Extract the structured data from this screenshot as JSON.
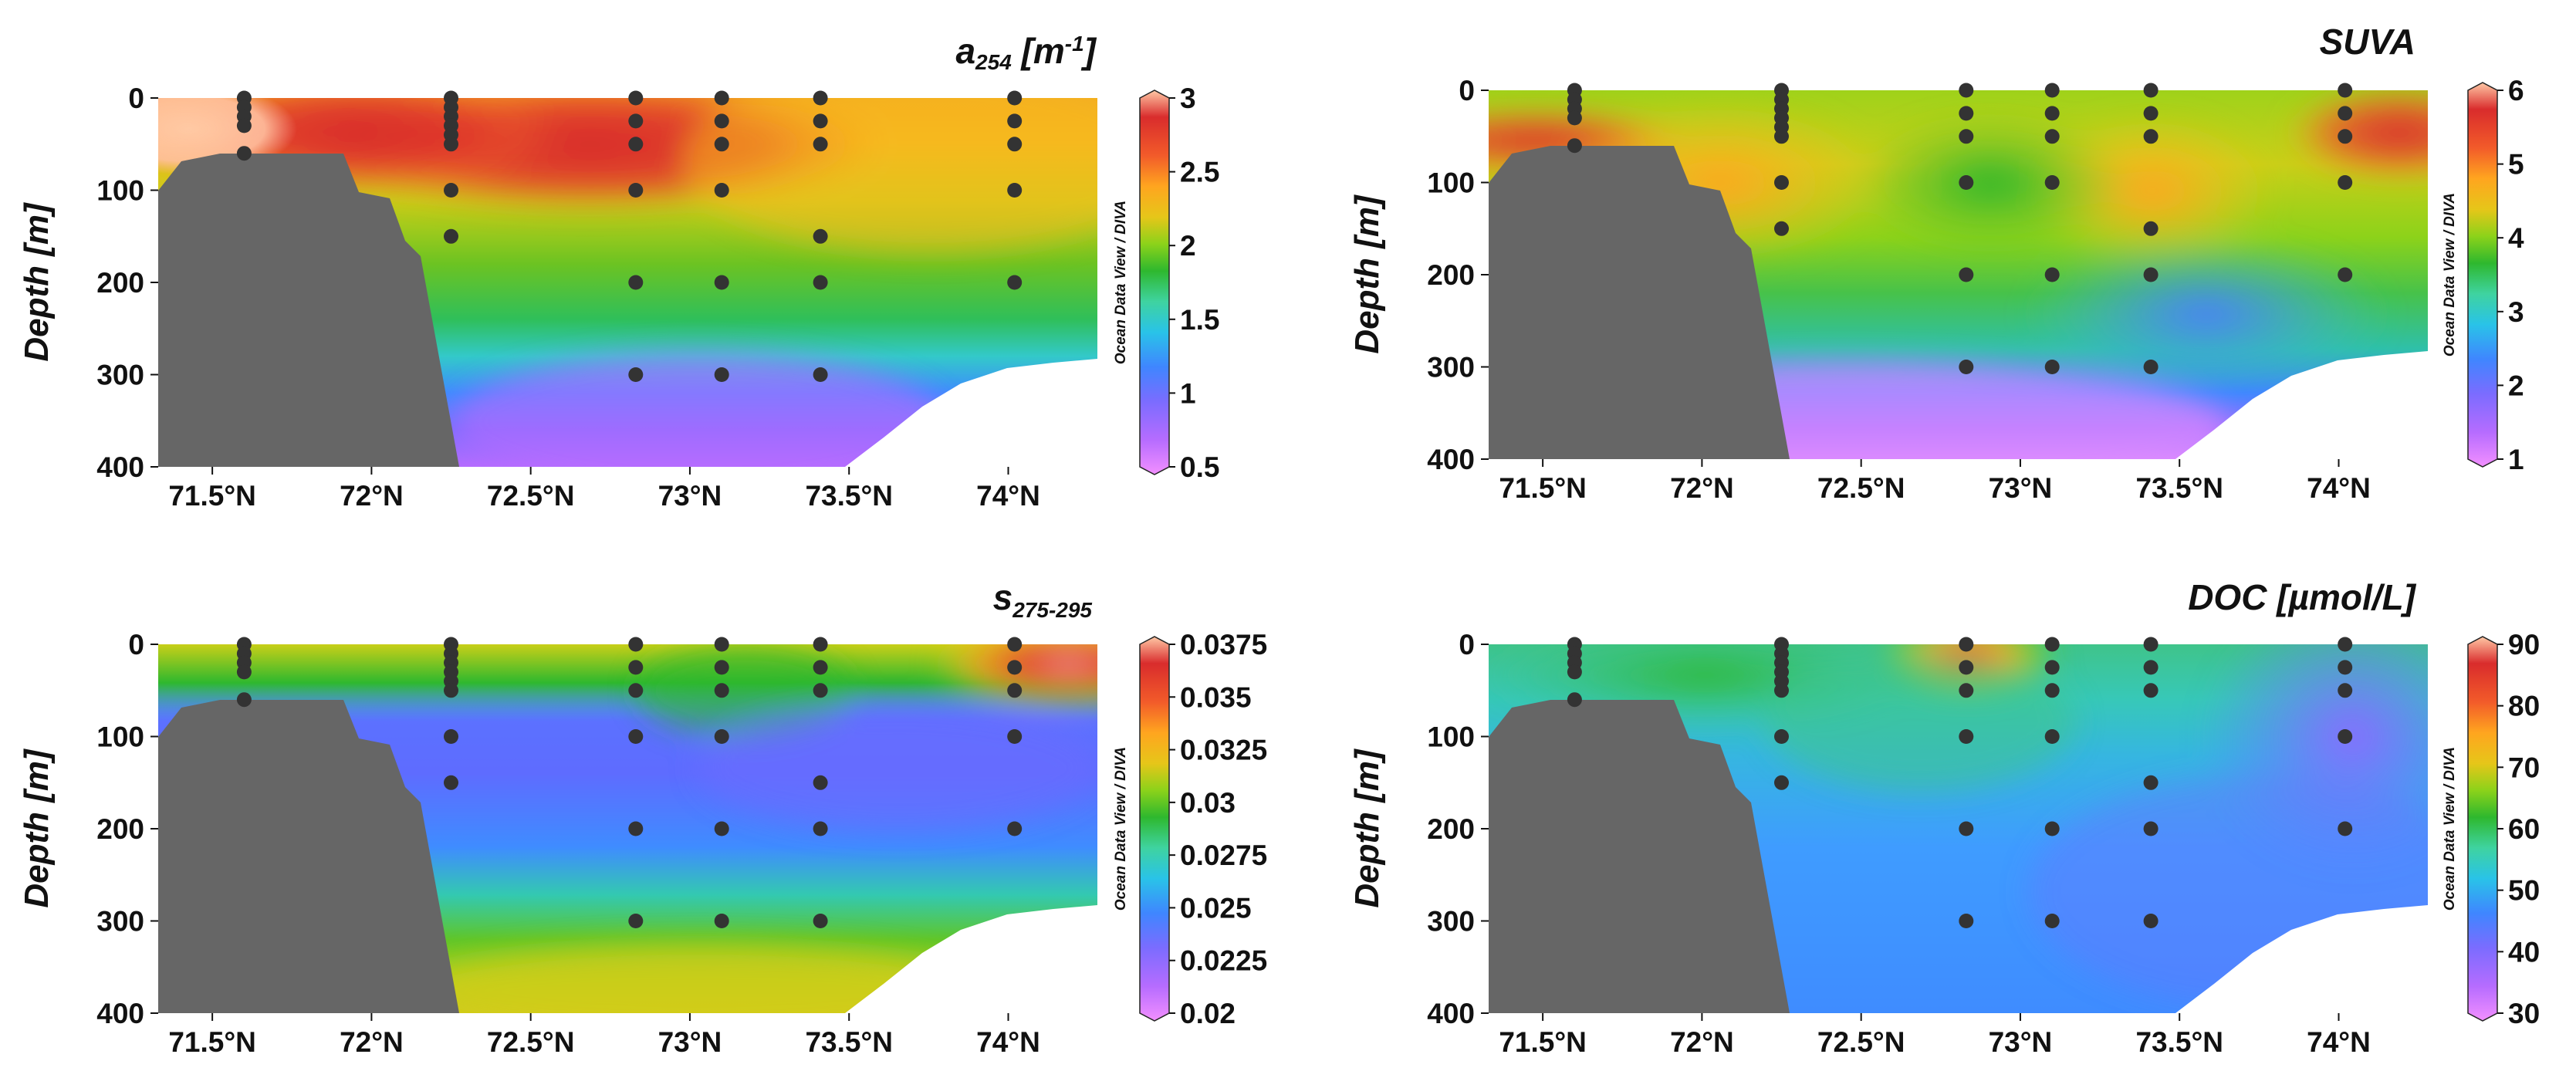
{
  "colors": {
    "bottom_topography": "#666666",
    "station_dot": "#333333",
    "palette": [
      "#f28fff",
      "#b66cff",
      "#7b6cff",
      "#3f86ff",
      "#29c3e8",
      "#3fd3a0",
      "#2eb82e",
      "#8cd21a",
      "#e6c619",
      "#ffa51f",
      "#f25b2a",
      "#d92c2c",
      "#ffc8a5"
    ]
  },
  "credit_text": "Ocean Data View / DIVA",
  "chart_data": [
    {
      "type": "heatmap",
      "title_main": "a",
      "title_sub": "254",
      "title_unit": " [m",
      "title_sup": "-1",
      "title_end": "]",
      "ylabel": "Depth [m]",
      "yticks": [
        "0",
        "100",
        "200",
        "300",
        "400"
      ],
      "xticks": [
        "71.5°N",
        "72°N",
        "72.5°N",
        "73°N",
        "73.5°N",
        "74°N"
      ],
      "xtick_values": [
        71.5,
        72,
        72.5,
        73,
        73.5,
        74
      ],
      "xlim": [
        71.33,
        74.28
      ],
      "ylim": [
        0,
        400
      ],
      "colorbar_ticks": [
        "3",
        "2.5",
        "2",
        "1.5",
        "1",
        "0.5"
      ],
      "colorbar_range": [
        0.5,
        3
      ],
      "stations": [
        {
          "lat": 71.6,
          "depths": [
            0,
            10,
            20,
            30,
            60
          ]
        },
        {
          "lat": 72.25,
          "depths": [
            0,
            10,
            20,
            30,
            40,
            50,
            100,
            150
          ]
        },
        {
          "lat": 72.83,
          "depths": [
            0,
            25,
            50,
            100,
            200,
            300
          ]
        },
        {
          "lat": 73.1,
          "depths": [
            0,
            25,
            50,
            100,
            200,
            300
          ]
        },
        {
          "lat": 73.41,
          "depths": [
            0,
            25,
            50,
            150,
            200,
            300
          ]
        },
        {
          "lat": 74.02,
          "depths": [
            0,
            25,
            50,
            100,
            200
          ]
        }
      ]
    },
    {
      "type": "heatmap",
      "title_main": "SUVA",
      "ylabel": "Depth [m]",
      "yticks": [
        "0",
        "100",
        "200",
        "300",
        "400"
      ],
      "xticks": [
        "71.5°N",
        "72°N",
        "72.5°N",
        "73°N",
        "73.5°N",
        "74°N"
      ],
      "xtick_values": [
        71.5,
        72,
        72.5,
        73,
        73.5,
        74
      ],
      "xlim": [
        71.33,
        74.28
      ],
      "ylim": [
        0,
        400
      ],
      "colorbar_ticks": [
        "6",
        "5",
        "4",
        "3",
        "2",
        "1"
      ],
      "colorbar_range": [
        1,
        6
      ],
      "stations": [
        {
          "lat": 71.6,
          "depths": [
            0,
            10,
            20,
            30,
            60
          ]
        },
        {
          "lat": 72.25,
          "depths": [
            0,
            10,
            20,
            30,
            40,
            50,
            100,
            150
          ]
        },
        {
          "lat": 72.83,
          "depths": [
            0,
            25,
            50,
            100,
            200,
            300
          ]
        },
        {
          "lat": 73.1,
          "depths": [
            0,
            25,
            50,
            100,
            200,
            300
          ]
        },
        {
          "lat": 73.41,
          "depths": [
            0,
            25,
            50,
            150,
            200,
            300
          ]
        },
        {
          "lat": 74.02,
          "depths": [
            0,
            25,
            50,
            100,
            200
          ]
        }
      ]
    },
    {
      "type": "heatmap",
      "title_main": "s",
      "title_sub": "275-295",
      "ylabel": "Depth [m]",
      "yticks": [
        "0",
        "100",
        "200",
        "300",
        "400"
      ],
      "xticks": [
        "71.5°N",
        "72°N",
        "72.5°N",
        "73°N",
        "73.5°N",
        "74°N"
      ],
      "xtick_values": [
        71.5,
        72,
        72.5,
        73,
        73.5,
        74
      ],
      "xlim": [
        71.33,
        74.28
      ],
      "ylim": [
        0,
        400
      ],
      "colorbar_ticks": [
        "0.0375",
        "0.035",
        "0.0325",
        "0.03",
        "0.0275",
        "0.025",
        "0.0225",
        "0.02"
      ],
      "colorbar_range": [
        0.02,
        0.0375
      ],
      "stations": [
        {
          "lat": 71.6,
          "depths": [
            0,
            10,
            20,
            30,
            60
          ]
        },
        {
          "lat": 72.25,
          "depths": [
            0,
            10,
            20,
            30,
            40,
            50,
            100,
            150
          ]
        },
        {
          "lat": 72.83,
          "depths": [
            0,
            25,
            50,
            100,
            200,
            300
          ]
        },
        {
          "lat": 73.1,
          "depths": [
            0,
            25,
            50,
            100,
            200,
            300
          ]
        },
        {
          "lat": 73.41,
          "depths": [
            0,
            25,
            50,
            150,
            200,
            300
          ]
        },
        {
          "lat": 74.02,
          "depths": [
            0,
            25,
            50,
            100,
            200
          ]
        }
      ]
    },
    {
      "type": "heatmap",
      "title_main": "DOC [µmol/L]",
      "ylabel": "Depth [m]",
      "yticks": [
        "0",
        "100",
        "200",
        "300",
        "400"
      ],
      "xticks": [
        "71.5°N",
        "72°N",
        "72.5°N",
        "73°N",
        "73.5°N",
        "74°N"
      ],
      "xtick_values": [
        71.5,
        72,
        72.5,
        73,
        73.5,
        74
      ],
      "xlim": [
        71.33,
        74.28
      ],
      "ylim": [
        0,
        400
      ],
      "colorbar_ticks": [
        "90",
        "80",
        "70",
        "60",
        "50",
        "40",
        "30"
      ],
      "colorbar_range": [
        30,
        90
      ],
      "stations": [
        {
          "lat": 71.6,
          "depths": [
            0,
            10,
            20,
            30,
            60
          ]
        },
        {
          "lat": 72.25,
          "depths": [
            0,
            10,
            20,
            30,
            40,
            50,
            100,
            150
          ]
        },
        {
          "lat": 72.83,
          "depths": [
            0,
            25,
            50,
            100,
            200,
            300
          ]
        },
        {
          "lat": 73.1,
          "depths": [
            0,
            25,
            50,
            100,
            200,
            300
          ]
        },
        {
          "lat": 73.41,
          "depths": [
            0,
            25,
            50,
            150,
            200,
            300
          ]
        },
        {
          "lat": 74.02,
          "depths": [
            0,
            25,
            50,
            100,
            200
          ]
        }
      ]
    }
  ]
}
